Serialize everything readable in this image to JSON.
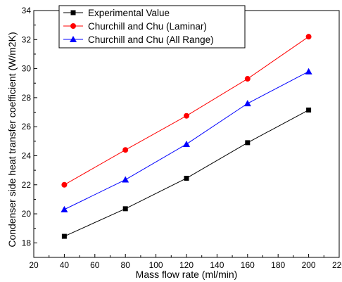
{
  "chart_data": {
    "type": "line",
    "title": "",
    "xlabel": "Mass flow rate (ml/min)",
    "ylabel": "Condenser side heat transfer coefficient (W/m2K)",
    "xlim": [
      20,
      220
    ],
    "ylim": [
      17,
      34
    ],
    "x_ticks": [
      20,
      40,
      60,
      80,
      100,
      120,
      140,
      160,
      180,
      200,
      220
    ],
    "y_ticks": [
      18,
      20,
      22,
      24,
      26,
      28,
      30,
      32,
      34
    ],
    "grid": false,
    "legend_position": "top-left",
    "x": [
      40,
      80,
      120,
      160,
      200
    ],
    "series": [
      {
        "name": "Experimental Value",
        "values": [
          18.45,
          20.35,
          22.45,
          24.9,
          27.15
        ],
        "color": "#000000",
        "marker": "square"
      },
      {
        "name": "Churchill and Chu (Laminar)",
        "values": [
          22.0,
          24.4,
          26.75,
          29.3,
          32.2
        ],
        "color": "#ff0000",
        "marker": "circle"
      },
      {
        "name": "Churchill and Chu (All Range)",
        "values": [
          20.3,
          22.35,
          24.8,
          27.6,
          29.8
        ],
        "color": "#0000ff",
        "marker": "triangle"
      }
    ]
  }
}
